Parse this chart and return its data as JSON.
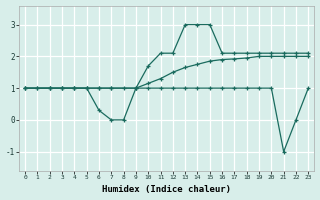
{
  "line1_x": [
    0,
    1,
    2,
    3,
    4,
    5,
    6,
    7,
    8,
    9,
    10,
    11,
    12,
    13,
    14,
    15,
    16,
    17,
    18,
    19,
    20,
    21,
    22,
    23
  ],
  "line1_y": [
    1,
    1,
    1,
    1,
    1,
    1,
    0.3,
    0,
    0,
    1,
    1,
    1,
    1,
    1,
    1,
    1,
    1,
    1,
    1,
    1,
    1,
    -1,
    0,
    1
  ],
  "line2_x": [
    0,
    2,
    3,
    4,
    5,
    6,
    7,
    9,
    10,
    11,
    12,
    13,
    14,
    15,
    16,
    17,
    18,
    19,
    20,
    21,
    22,
    23
  ],
  "line2_y": [
    1,
    1,
    1,
    1,
    1,
    1,
    1,
    1,
    1.7,
    2.1,
    2.1,
    3,
    3,
    3,
    2.1,
    2.1,
    2.1,
    2.1,
    2.1,
    2.1,
    2.1,
    2.1
  ],
  "line3_x": [
    0,
    1,
    2,
    3,
    4,
    5,
    6,
    7,
    8,
    9,
    10,
    11,
    12,
    13,
    14,
    15,
    16,
    17,
    18,
    19,
    20,
    21,
    22,
    23
  ],
  "line3_y": [
    1,
    1,
    1,
    1,
    1,
    1,
    1,
    1,
    1,
    1,
    1.15,
    1.3,
    1.5,
    1.65,
    1.75,
    1.85,
    1.9,
    1.92,
    1.95,
    2.0,
    2.0,
    2.0,
    2.0,
    2.0
  ],
  "line_color": "#1a6b5e",
  "bg_color": "#d8eeea",
  "grid_color": "#b8d8d2",
  "white_grid": "#e8f4f2",
  "xlabel": "Humidex (Indice chaleur)",
  "xlim": [
    -0.5,
    23.5
  ],
  "ylim": [
    -1.6,
    3.6
  ],
  "xticks": [
    0,
    1,
    2,
    3,
    4,
    5,
    6,
    7,
    8,
    9,
    10,
    11,
    12,
    13,
    14,
    15,
    16,
    17,
    18,
    19,
    20,
    21,
    22,
    23
  ],
  "yticks": [
    -1,
    0,
    1,
    2,
    3
  ],
  "marker": "+"
}
